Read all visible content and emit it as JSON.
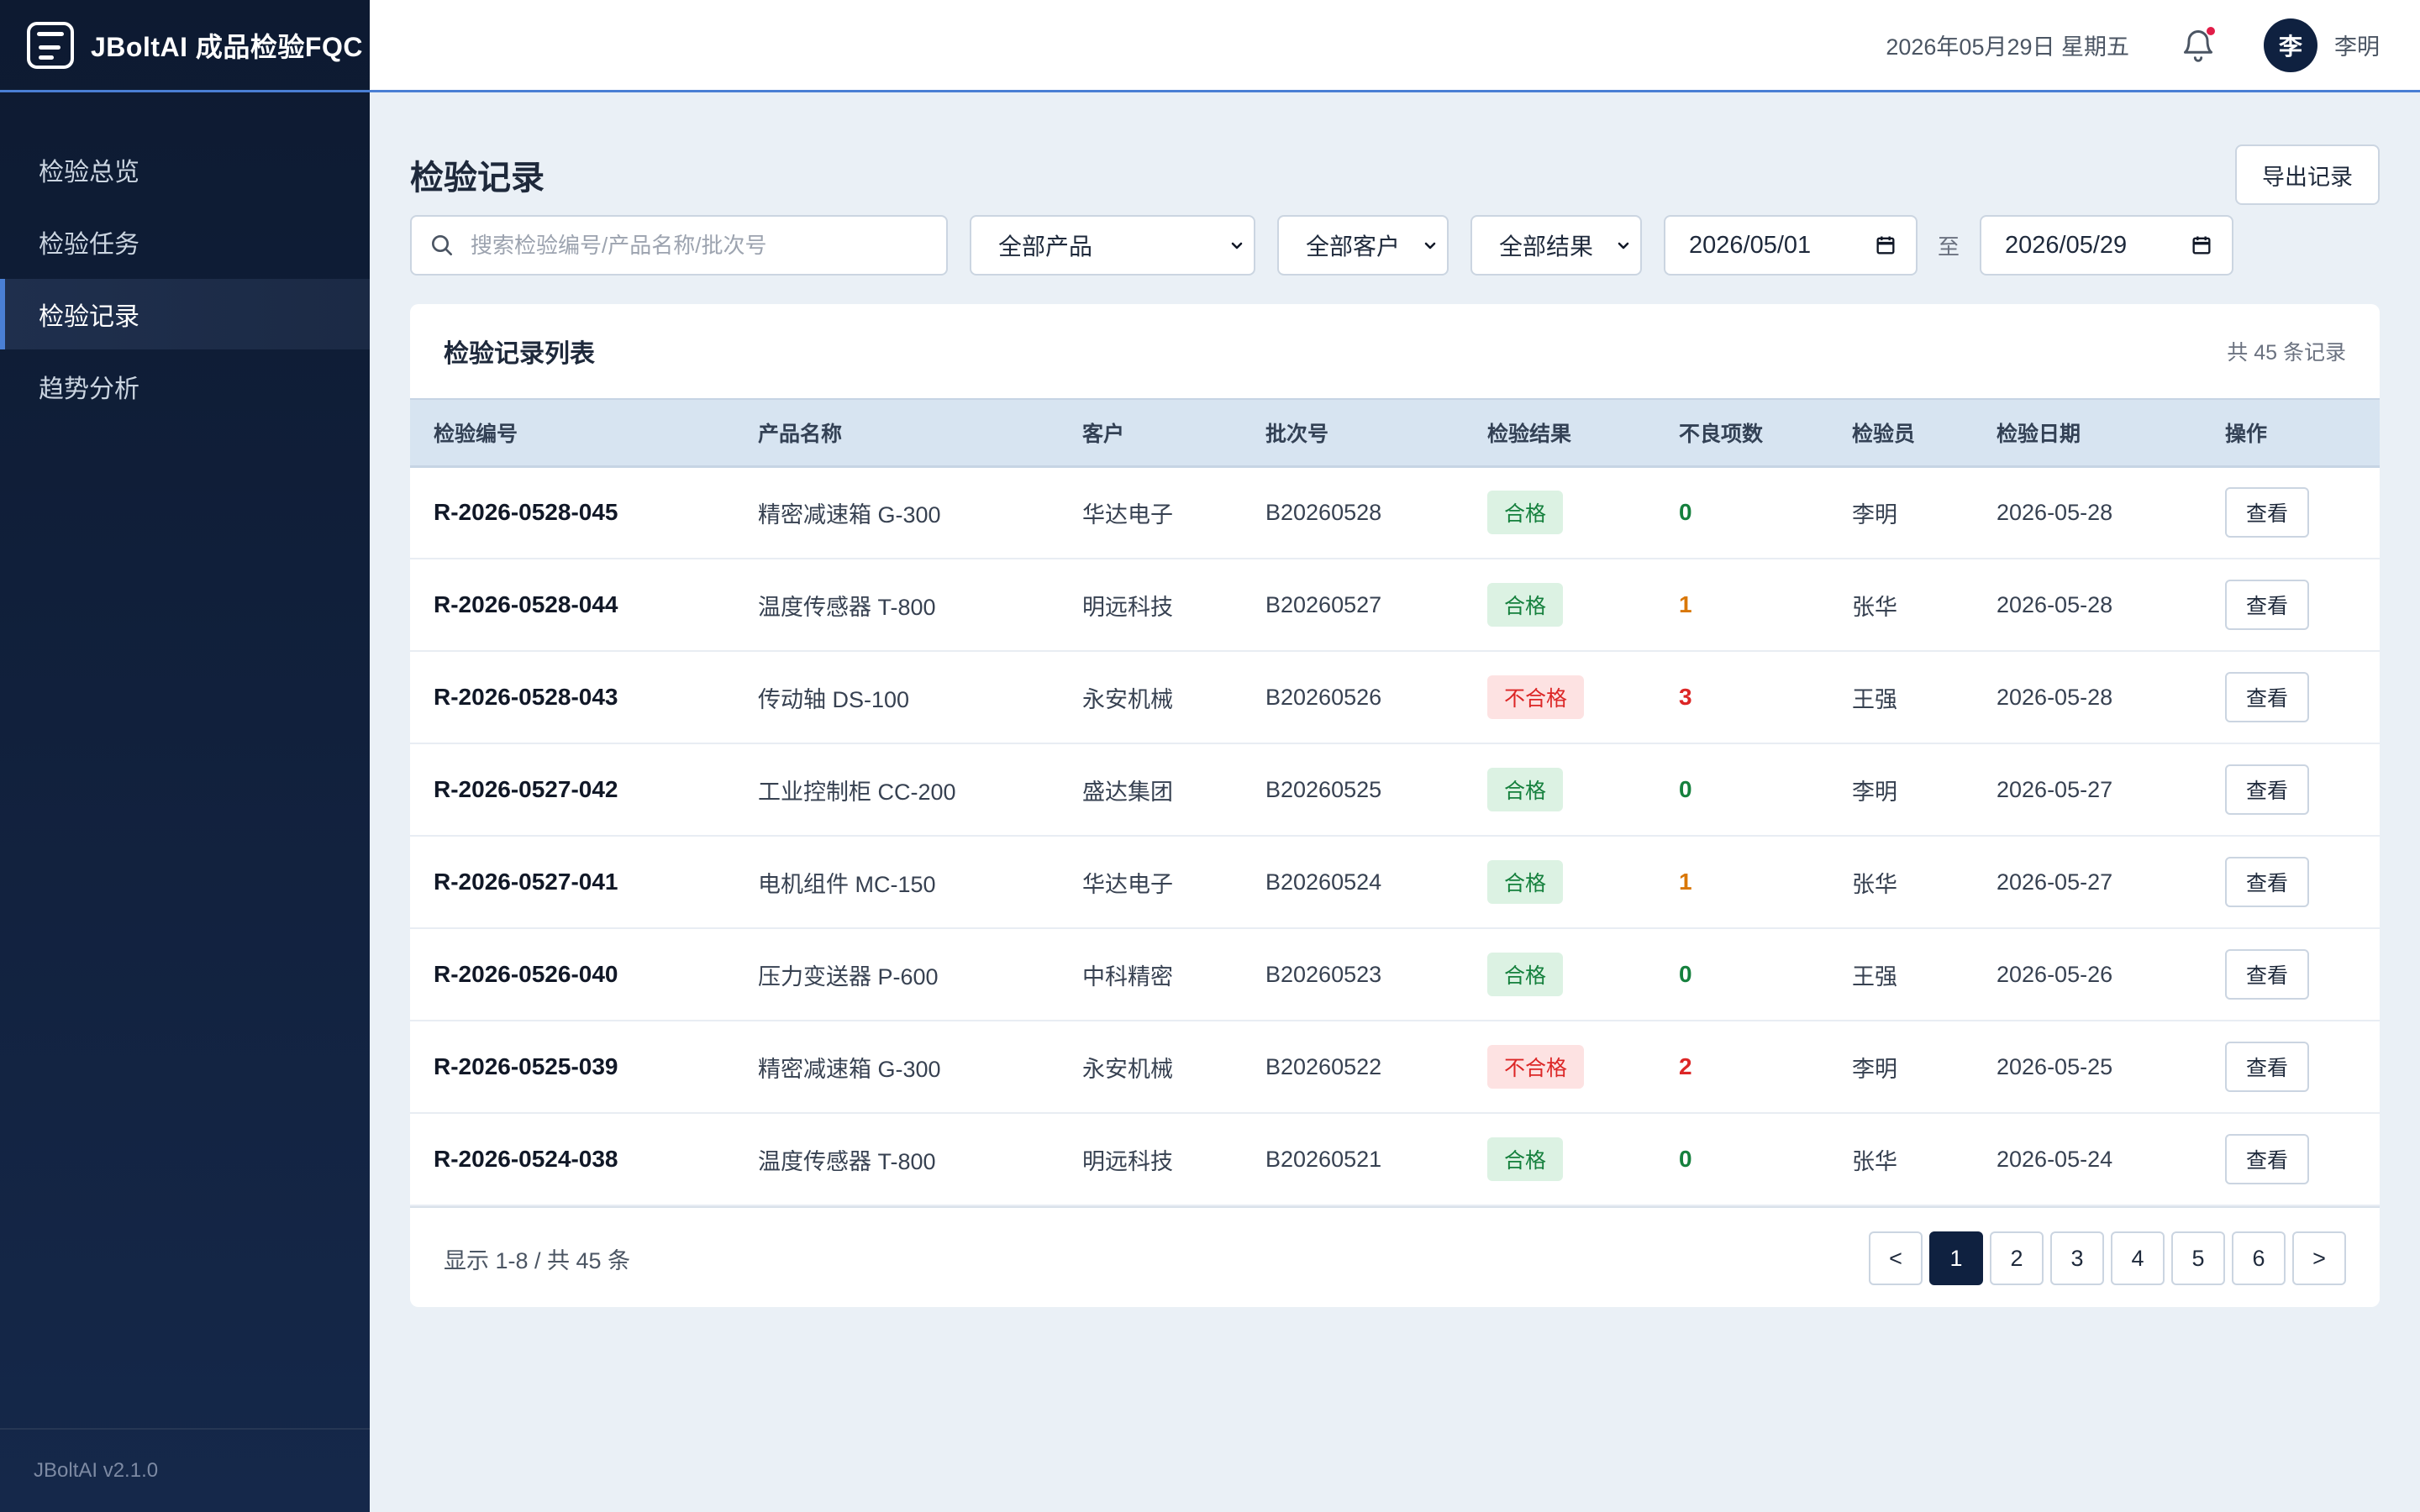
{
  "app": {
    "title": "JBoltAI 成品检验FQC",
    "version": "JBoltAI v2.1.0"
  },
  "sidebar": {
    "items": [
      {
        "label": "检验总览",
        "active": false
      },
      {
        "label": "检验任务",
        "active": false
      },
      {
        "label": "检验记录",
        "active": true
      },
      {
        "label": "趋势分析",
        "active": false
      }
    ]
  },
  "header": {
    "date": "2026年05月29日 星期五",
    "user_initial": "李",
    "user_name": "李明"
  },
  "page": {
    "title": "检验记录",
    "export_label": "导出记录"
  },
  "filters": {
    "search_placeholder": "搜索检验编号/产品名称/批次号",
    "product": "全部产品",
    "customer": "全部客户",
    "result": "全部结果",
    "date_from": "2026/05/01",
    "date_sep": "至",
    "date_to": "2026/05/29"
  },
  "table": {
    "title": "检验记录列表",
    "count_text": "共 45 条记录",
    "columns": [
      "检验编号",
      "产品名称",
      "客户",
      "批次号",
      "检验结果",
      "不良项数",
      "检验员",
      "检验日期",
      "操作"
    ],
    "view_label": "查看",
    "rows": [
      {
        "code": "R-2026-0528-045",
        "product": "精密减速箱 G-300",
        "customer": "华达电子",
        "batch": "B20260528",
        "result": "合格",
        "pass": true,
        "defects": "0",
        "inspector": "李明",
        "date": "2026-05-28"
      },
      {
        "code": "R-2026-0528-044",
        "product": "温度传感器 T-800",
        "customer": "明远科技",
        "batch": "B20260527",
        "result": "合格",
        "pass": true,
        "defects": "1",
        "inspector": "张华",
        "date": "2026-05-28"
      },
      {
        "code": "R-2026-0528-043",
        "product": "传动轴 DS-100",
        "customer": "永安机械",
        "batch": "B20260526",
        "result": "不合格",
        "pass": false,
        "defects": "3",
        "inspector": "王强",
        "date": "2026-05-28"
      },
      {
        "code": "R-2026-0527-042",
        "product": "工业控制柜 CC-200",
        "customer": "盛达集团",
        "batch": "B20260525",
        "result": "合格",
        "pass": true,
        "defects": "0",
        "inspector": "李明",
        "date": "2026-05-27"
      },
      {
        "code": "R-2026-0527-041",
        "product": "电机组件 MC-150",
        "customer": "华达电子",
        "batch": "B20260524",
        "result": "合格",
        "pass": true,
        "defects": "1",
        "inspector": "张华",
        "date": "2026-05-27"
      },
      {
        "code": "R-2026-0526-040",
        "product": "压力变送器 P-600",
        "customer": "中科精密",
        "batch": "B20260523",
        "result": "合格",
        "pass": true,
        "defects": "0",
        "inspector": "王强",
        "date": "2026-05-26"
      },
      {
        "code": "R-2026-0525-039",
        "product": "精密减速箱 G-300",
        "customer": "永安机械",
        "batch": "B20260522",
        "result": "不合格",
        "pass": false,
        "defects": "2",
        "inspector": "李明",
        "date": "2026-05-25"
      },
      {
        "code": "R-2026-0524-038",
        "product": "温度传感器 T-800",
        "customer": "明远科技",
        "batch": "B20260521",
        "result": "合格",
        "pass": true,
        "defects": "0",
        "inspector": "张华",
        "date": "2026-05-24"
      }
    ]
  },
  "pagination": {
    "summary": "显示 1-8 / 共 45 条",
    "prev": "<",
    "next": ">",
    "pages": [
      "1",
      "2",
      "3",
      "4",
      "5",
      "6"
    ],
    "current": "1"
  },
  "colors": {
    "sidebar_bg": "#0d1a31",
    "accent": "#4a7fd4",
    "pass": "#15803d",
    "fail": "#dc2626",
    "warn": "#d97706"
  },
  "icons": {
    "brand": "document-box-icon",
    "bell": "bell-icon",
    "search": "search-icon",
    "calendar": "calendar-icon",
    "chevron": "chevron-down-icon"
  }
}
